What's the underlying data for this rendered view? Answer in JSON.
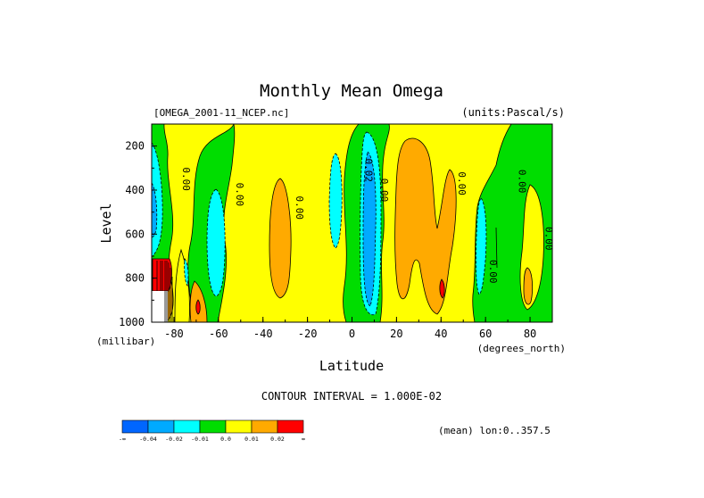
{
  "chart_data": {
    "type": "heatmap",
    "title": "Monthly Mean Omega",
    "dataset": "[OMEGA_2001-11_NCEP.nc]",
    "units": "(units:Pascal/s)",
    "xlabel": "Latitude",
    "x_units": "(degrees_north)",
    "ylabel": "Level",
    "y_units": "(millibar)",
    "x_ticks": [
      "-80",
      "-60",
      "-40",
      "-20",
      "0",
      "20",
      "40",
      "60",
      "80"
    ],
    "y_ticks": [
      "200",
      "400",
      "600",
      "800",
      "1000"
    ],
    "xlim": [
      -90,
      90
    ],
    "ylim": [
      1000,
      100
    ],
    "contour_interval": "CONTOUR INTERVAL = 1.000E-02",
    "averaging_note": "(mean) lon:0..357.5",
    "contour_labels": [
      {
        "text": "0.00",
        "lat": -76,
        "lev": 350
      },
      {
        "text": "0.00",
        "lat": -52,
        "lev": 420
      },
      {
        "text": "0.00",
        "lat": -25,
        "lev": 480
      },
      {
        "text": "0.02",
        "lat": 6,
        "lev": 310
      },
      {
        "text": "0.00",
        "lat": 13,
        "lev": 400
      },
      {
        "text": "0.00",
        "lat": 48,
        "lev": 370
      },
      {
        "text": "0.00",
        "lat": 75,
        "lev": 360
      },
      {
        "text": "0.00",
        "lat": 62,
        "lev": 770
      },
      {
        "text": "0.00",
        "lat": 87,
        "lev": 620
      }
    ],
    "colorbar": {
      "colors": [
        "#0066ff",
        "#00aaff",
        "#00ffff",
        "#00dd00",
        "#ffff00",
        "#ffaa00",
        "#ff0000"
      ],
      "labels": [
        "-∞",
        "-0.04",
        "-0.02",
        "-0.01",
        "0.0",
        "0.01",
        "0.02",
        "∞"
      ]
    }
  }
}
